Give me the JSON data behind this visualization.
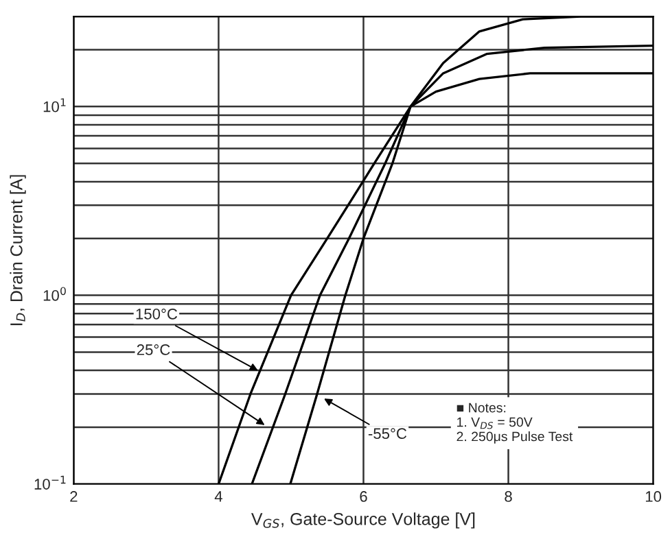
{
  "chart_data": {
    "type": "line",
    "xlabel": "V$_{GS}$, Gate-Source Voltage [V]",
    "ylabel": "I$_{D}$, Drain Current [A]",
    "series": [
      {
        "color": "#000000",
        "x": [
          4.0,
          4.44,
          5.0,
          5.5,
          6.15,
          6.65,
          7.0,
          7.6,
          8.3,
          10.0
        ],
        "values": [
          0.1,
          0.3,
          1,
          2,
          5,
          10,
          12,
          14,
          15,
          15
        ]
      },
      {
        "color": "#000000",
        "x": [
          4.46,
          4.92,
          5.4,
          5.8,
          6.3,
          6.65,
          7.1,
          7.7,
          8.5,
          10.0
        ],
        "values": [
          0.1,
          0.3,
          1,
          2,
          5,
          10,
          15,
          19,
          20.5,
          21
        ]
      },
      {
        "color": "#000000",
        "x": [
          4.99,
          5.36,
          5.75,
          6.0,
          6.4,
          6.65,
          7.1,
          7.6,
          8.2,
          9.0,
          10.0
        ],
        "values": [
          0.1,
          0.3,
          1,
          2,
          5,
          10,
          17,
          25,
          29,
          30,
          30
        ]
      }
    ],
    "annotations": [
      {
        "text": "150°C",
        "x": 4.59,
        "y": 0.39
      },
      {
        "text": "25°C",
        "x": 4.68,
        "y": 0.2
      },
      {
        "text": "-55°C",
        "x": 5.41,
        "y": 0.29
      },
      "■ Notes:\n1. V$_{DS}$ = 50V\n2. 250μs Pulse Test"
    ],
    "log": "y",
    "xlim": [
      2,
      10
    ],
    "ylim": [
      0.1,
      30
    ],
    "xticks": [
      2,
      4,
      6,
      8,
      10
    ],
    "yticks": [
      {
        "value": 0.1,
        "label": "10$^{−1}$"
      },
      {
        "value": 0.2,
        "label": null
      },
      {
        "value": 0.3,
        "label": null
      },
      {
        "value": 0.4,
        "label": null
      },
      {
        "value": 0.5,
        "label": null
      },
      {
        "value": 0.6,
        "label": null
      },
      {
        "value": 0.7,
        "label": null
      },
      {
        "value": 0.8,
        "label": null
      },
      {
        "value": 0.9,
        "label": null
      },
      {
        "value": 1,
        "label": "10$^{0}$"
      },
      {
        "value": 2,
        "label": null
      },
      {
        "value": 3,
        "label": null
      },
      {
        "value": 4,
        "label": null
      },
      {
        "value": 5,
        "label": null
      },
      {
        "value": 6,
        "label": null
      },
      {
        "value": 7,
        "label": null
      },
      {
        "value": 8,
        "label": null
      },
      {
        "value": 9,
        "label": null
      },
      {
        "value": 10,
        "label": "10$^{1}$"
      },
      {
        "value": 20,
        "label": null
      },
      {
        "value": 30,
        "label": null
      }
    ],
    "grid": true,
    "marker": "none",
    "line_style": "solid"
  }
}
